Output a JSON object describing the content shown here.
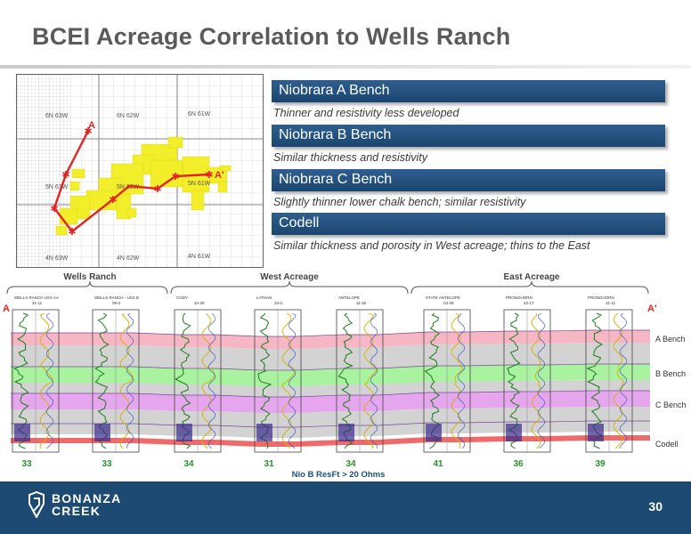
{
  "title": "BCEI Acreage Correlation to Wells Ranch",
  "map": {
    "township_labels": [
      "6N 63W",
      "6N 62W",
      "6N 61W",
      "5N 63W",
      "5N 62W",
      "5N 61W",
      "4N 63W",
      "4N 62W",
      "4N 61W"
    ],
    "point_a": "A",
    "point_a_prime": "A'"
  },
  "benches": [
    {
      "name": "Niobrara A Bench",
      "desc": "Thinner and resistivity less developed"
    },
    {
      "name": "Niobrara B Bench",
      "desc": "Similar thickness and resistivity"
    },
    {
      "name": "Niobrara C Bench",
      "desc": "Slightly thinner lower chalk bench; similar resistivity"
    },
    {
      "name": "Codell",
      "desc": "Similar thickness and porosity in West acreage; thins to the East"
    }
  ],
  "cross_section": {
    "groups": [
      "Wells Ranch",
      "West Acreage",
      "East Acreage"
    ],
    "end_a": "A",
    "end_a_prime": "A'",
    "wells": [
      {
        "name": "WELLS RANCH USX AA",
        "num": "21-11",
        "value": "33"
      },
      {
        "name": "WELLS RANCH - USX B",
        "num": "09-0",
        "value": "33"
      },
      {
        "name": "CODY",
        "num": "34-28",
        "value": "34"
      },
      {
        "name": "LATHAN",
        "num": "34-0",
        "value": "31"
      },
      {
        "name": "ANTELOPE",
        "num": "11-36",
        "value": "34"
      },
      {
        "name": "STATE ANTELOPE",
        "num": "03-28",
        "value": "41"
      },
      {
        "name": "PRONGHORN",
        "num": "42-17",
        "value": "36"
      },
      {
        "name": "PRONGHORN",
        "num": "31-11",
        "value": "39"
      }
    ],
    "zone_labels": [
      "A Bench",
      "B Bench",
      "C Bench",
      "Codell"
    ],
    "footnote": "Nio B ResFt > 20 Ohms",
    "colors": {
      "a_bench": "#f7b6c3",
      "gray_band": "#d3d3d3",
      "b_bench": "#a9f3a0",
      "c_bench": "#e6a6ee",
      "codell": "#ef6a6a",
      "values": "#2e8b2e"
    }
  },
  "footer": {
    "logo_top": "BONANZA",
    "logo_bottom": "CREEK",
    "page": "30"
  }
}
